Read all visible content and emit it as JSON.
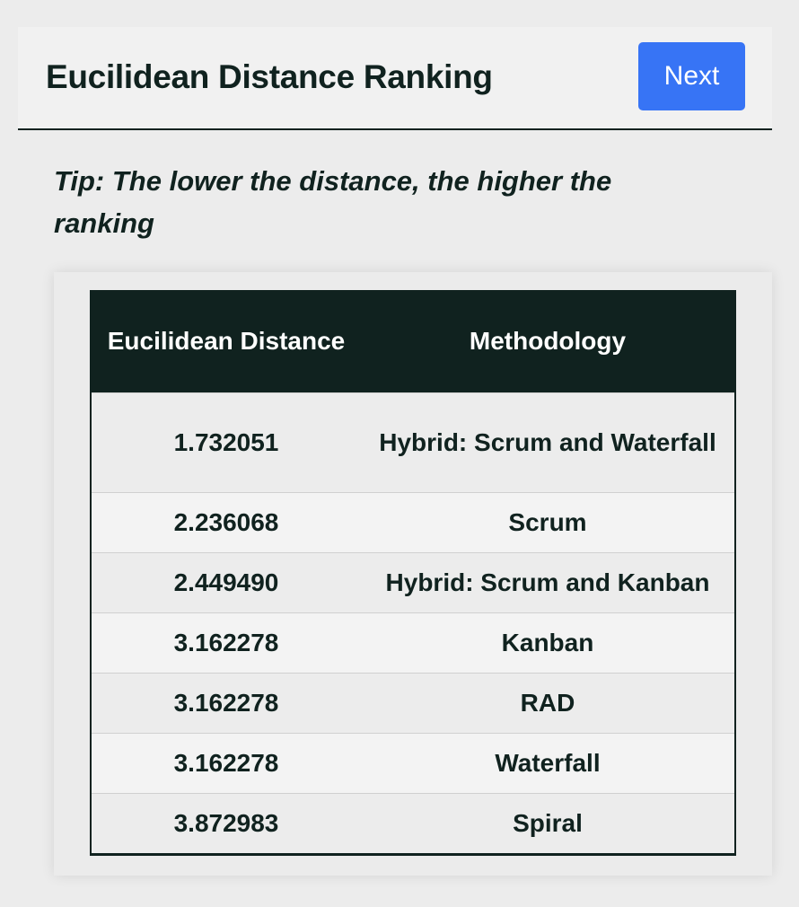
{
  "header": {
    "title": "Eucilidean Distance Ranking",
    "next_label": "Next"
  },
  "tip": "Tip: The lower the distance, the higher the ranking",
  "table": {
    "columns": [
      "Eucilidean Distance",
      "Methodology"
    ],
    "rows": [
      {
        "distance": "1.732051",
        "methodology": "Hybrid: Scrum and Waterfall"
      },
      {
        "distance": "2.236068",
        "methodology": "Scrum"
      },
      {
        "distance": "2.449490",
        "methodology": "Hybrid: Scrum and Kanban"
      },
      {
        "distance": "3.162278",
        "methodology": "Kanban"
      },
      {
        "distance": "3.162278",
        "methodology": "RAD"
      },
      {
        "distance": "3.162278",
        "methodology": "Waterfall"
      },
      {
        "distance": "3.872983",
        "methodology": "Spiral"
      }
    ]
  },
  "colors": {
    "primary_dark": "#10221f",
    "button_blue": "#3774f5",
    "background": "#ececec"
  }
}
